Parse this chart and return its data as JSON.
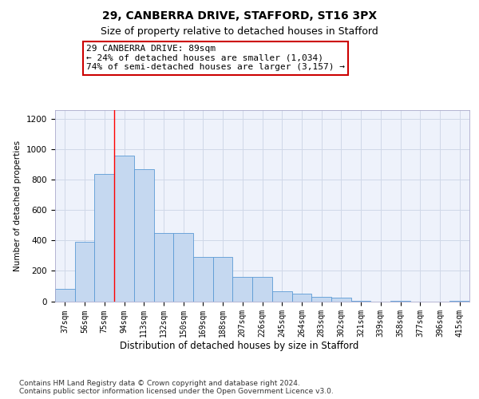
{
  "title1": "29, CANBERRA DRIVE, STAFFORD, ST16 3PX",
  "title2": "Size of property relative to detached houses in Stafford",
  "xlabel": "Distribution of detached houses by size in Stafford",
  "ylabel": "Number of detached properties",
  "categories": [
    "37sqm",
    "56sqm",
    "75sqm",
    "94sqm",
    "113sqm",
    "132sqm",
    "150sqm",
    "169sqm",
    "188sqm",
    "207sqm",
    "226sqm",
    "245sqm",
    "264sqm",
    "283sqm",
    "302sqm",
    "321sqm",
    "339sqm",
    "358sqm",
    "377sqm",
    "396sqm",
    "415sqm"
  ],
  "values": [
    80,
    390,
    840,
    960,
    870,
    450,
    450,
    290,
    290,
    160,
    160,
    65,
    50,
    30,
    25,
    5,
    0,
    5,
    0,
    0,
    5
  ],
  "bar_color": "#c5d8f0",
  "bar_edge_color": "#5b9bd5",
  "red_line_index": 3,
  "annotation_text": "29 CANBERRA DRIVE: 89sqm\n← 24% of detached houses are smaller (1,034)\n74% of semi-detached houses are larger (3,157) →",
  "annotation_box_color": "#ffffff",
  "annotation_box_edge": "#cc0000",
  "ylim": [
    0,
    1260
  ],
  "yticks": [
    0,
    200,
    400,
    600,
    800,
    1000,
    1200
  ],
  "grid_color": "#d0d8e8",
  "footnote": "Contains HM Land Registry data © Crown copyright and database right 2024.\nContains public sector information licensed under the Open Government Licence v3.0.",
  "bg_color": "#eef2fb",
  "title1_fontsize": 10,
  "title2_fontsize": 9
}
